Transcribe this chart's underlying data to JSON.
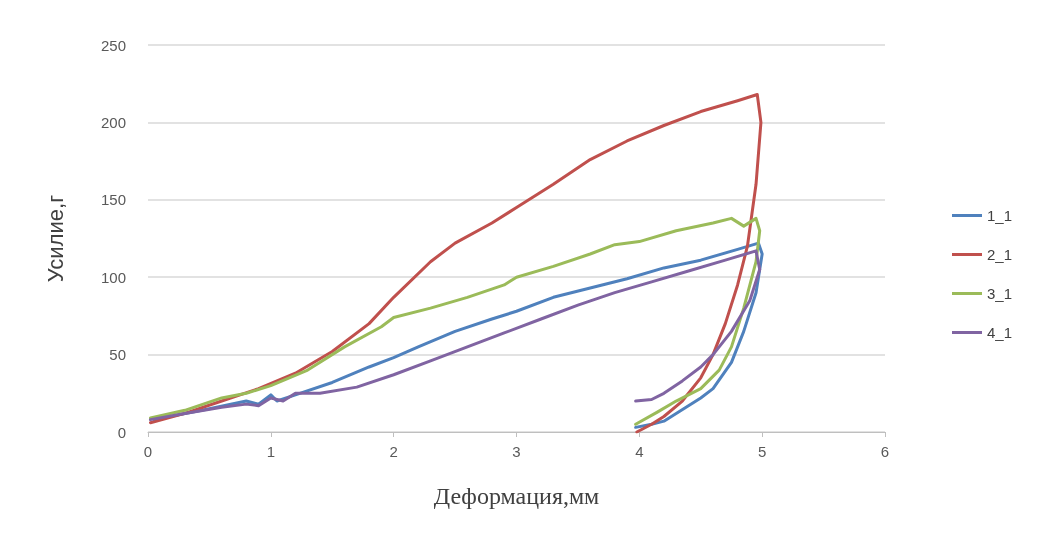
{
  "chart_data": {
    "type": "line",
    "xlabel": "Деформация,мм",
    "ylabel": "Усилие,г",
    "xlim": [
      0,
      6
    ],
    "xticks": [
      0,
      1,
      2,
      3,
      4,
      5,
      6
    ],
    "ylim": [
      0,
      250
    ],
    "yticks": [
      0,
      50,
      100,
      150,
      200,
      250
    ],
    "grid": "y",
    "legend": "right",
    "marker": "none",
    "line_style": "solid",
    "series": [
      {
        "name": "1_1",
        "color": "#4f81bd",
        "x": [
          0.05,
          0.5,
          0.8,
          0.9,
          1.0,
          1.05,
          1.2,
          1.5,
          1.8,
          2.0,
          2.2,
          2.5,
          2.8,
          3.0,
          3.3,
          3.6,
          3.9,
          4.2,
          4.5,
          4.8,
          4.97,
          5.0,
          4.95,
          4.85,
          4.75,
          4.6,
          4.5,
          4.4,
          4.3,
          4.2,
          4.1,
          3.97
        ],
        "values": [
          8,
          15,
          20,
          18,
          24,
          20,
          24,
          32,
          42,
          48,
          55,
          65,
          73,
          78,
          87,
          93,
          99,
          106,
          111,
          118,
          122,
          115,
          90,
          65,
          45,
          28,
          22,
          17,
          12,
          7,
          5,
          3
        ]
      },
      {
        "name": "2_1",
        "color": "#c0504d",
        "x": [
          0.02,
          0.3,
          0.6,
          0.9,
          1.2,
          1.5,
          1.8,
          2.0,
          2.3,
          2.5,
          2.8,
          3.0,
          3.3,
          3.6,
          3.9,
          4.2,
          4.5,
          4.8,
          4.96,
          4.99,
          4.95,
          4.88,
          4.8,
          4.7,
          4.6,
          4.5,
          4.35,
          4.2,
          4.1,
          3.98
        ],
        "values": [
          6,
          12,
          20,
          28,
          38,
          52,
          70,
          87,
          110,
          122,
          135,
          145,
          160,
          176,
          188,
          198,
          207,
          214,
          218,
          200,
          160,
          120,
          95,
          70,
          50,
          35,
          20,
          10,
          5,
          0
        ]
      },
      {
        "name": "3_1",
        "color": "#9bbb59",
        "x": [
          0.02,
          0.3,
          0.6,
          0.8,
          1.0,
          1.3,
          1.6,
          1.9,
          2.0,
          2.3,
          2.6,
          2.9,
          3.0,
          3.3,
          3.6,
          3.8,
          4.0,
          4.3,
          4.6,
          4.75,
          4.85,
          4.95,
          4.98,
          4.95,
          4.85,
          4.75,
          4.65,
          4.5,
          4.3,
          4.15,
          3.97
        ],
        "values": [
          9,
          14,
          22,
          25,
          30,
          40,
          55,
          68,
          74,
          80,
          87,
          95,
          100,
          107,
          115,
          121,
          123,
          130,
          135,
          138,
          133,
          138,
          130,
          110,
          80,
          55,
          40,
          28,
          20,
          13,
          5
        ]
      },
      {
        "name": "4_1",
        "color": "#8064a2",
        "x": [
          0.02,
          0.3,
          0.6,
          0.8,
          0.9,
          1.0,
          1.1,
          1.2,
          1.4,
          1.7,
          2.0,
          2.3,
          2.6,
          2.9,
          3.2,
          3.5,
          3.8,
          4.1,
          4.4,
          4.7,
          4.95,
          4.98,
          4.9,
          4.75,
          4.6,
          4.5,
          4.35,
          4.2,
          4.1,
          3.97
        ],
        "values": [
          8,
          12,
          16,
          18,
          17,
          22,
          20,
          25,
          25,
          29,
          37,
          46,
          55,
          64,
          73,
          82,
          90,
          97,
          104,
          111,
          117,
          105,
          85,
          65,
          50,
          42,
          33,
          25,
          21,
          20
        ]
      }
    ]
  }
}
